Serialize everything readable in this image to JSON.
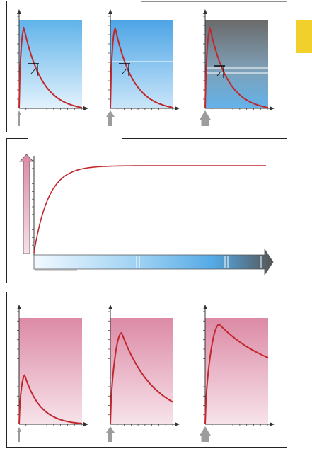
{
  "colors": {
    "frame": "#222222",
    "curve": "#c0282e",
    "axis": "#333333",
    "arrow_gray": "#999999",
    "blue_light": "#dff0fb",
    "blue_mid": "#8cc7ef",
    "blue_strong": "#4fa6e6",
    "dark_gray": "#5a5a5a",
    "pink_light": "#f4dce6",
    "pink_mid": "#e6a3ba",
    "pink_strong": "#d98aa5",
    "yellow_tab": "#f2d02b"
  },
  "icons": [
    "up-arrow-icon",
    "right-arrow-icon"
  ]
}
